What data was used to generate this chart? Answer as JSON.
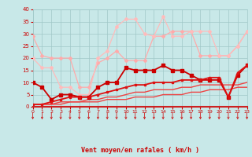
{
  "xlabel": "Vent moyen/en rafales ( km/h )",
  "bg_color": "#c8e8e8",
  "grid_color": "#a0c8c8",
  "xlim": [
    0,
    23
  ],
  "ylim": [
    0,
    40
  ],
  "xtick_vals": [
    0,
    1,
    2,
    3,
    4,
    5,
    6,
    7,
    8,
    9,
    10,
    11,
    12,
    13,
    14,
    15,
    16,
    17,
    18,
    19,
    20,
    21,
    22,
    23
  ],
  "ytick_vals": [
    0,
    5,
    10,
    15,
    20,
    25,
    30,
    35,
    40
  ],
  "lines": [
    {
      "x": [
        0,
        1,
        2,
        3,
        4,
        5,
        6,
        7,
        8,
        9,
        10,
        11,
        12,
        13,
        14,
        15,
        16,
        17,
        18,
        19,
        20,
        21,
        22,
        23
      ],
      "y": [
        29,
        21,
        20,
        20,
        20,
        8,
        8,
        18,
        20,
        23,
        19,
        19,
        19,
        29,
        29,
        31,
        31,
        31,
        21,
        21,
        21,
        21,
        25,
        31
      ],
      "color": "#ffaaaa",
      "lw": 0.9,
      "marker": "D",
      "ms": 2.0,
      "zorder": 3
    },
    {
      "x": [
        0,
        1,
        2,
        3,
        4,
        5,
        6,
        7,
        8,
        9,
        10,
        11,
        12,
        13,
        14,
        15,
        16,
        17,
        18,
        19,
        20,
        21,
        22,
        23
      ],
      "y": [
        20,
        16,
        16,
        8,
        8,
        5,
        5,
        20,
        23,
        33,
        36,
        36,
        30,
        29,
        37,
        29,
        29,
        31,
        31,
        31,
        21,
        21,
        25,
        31
      ],
      "color": "#ffbbbb",
      "lw": 0.9,
      "marker": "D",
      "ms": 2.0,
      "zorder": 3
    },
    {
      "x": [
        0,
        1,
        2,
        3,
        4,
        5,
        6,
        7,
        8,
        9,
        10,
        11,
        12,
        13,
        14,
        15,
        16,
        17,
        18,
        19,
        20,
        21,
        22,
        23
      ],
      "y": [
        10,
        8,
        3,
        5,
        5,
        4,
        4,
        8,
        10,
        10,
        16,
        15,
        15,
        15,
        17,
        15,
        15,
        13,
        11,
        11,
        11,
        4,
        13,
        17
      ],
      "color": "#cc0000",
      "lw": 1.3,
      "marker": "s",
      "ms": 2.2,
      "zorder": 4
    },
    {
      "x": [
        0,
        1,
        2,
        3,
        4,
        5,
        6,
        7,
        8,
        9,
        10,
        11,
        12,
        13,
        14,
        15,
        16,
        17,
        18,
        19,
        20,
        21,
        22,
        23
      ],
      "y": [
        1,
        1,
        2,
        3,
        4,
        4,
        4,
        5,
        6,
        7,
        8,
        9,
        9,
        10,
        10,
        10,
        11,
        11,
        11,
        12,
        12,
        4,
        14,
        17
      ],
      "color": "#dd1111",
      "lw": 1.3,
      "marker": "s",
      "ms": 1.8,
      "zorder": 4
    },
    {
      "x": [
        0,
        1,
        2,
        3,
        4,
        5,
        6,
        7,
        8,
        9,
        10,
        11,
        12,
        13,
        14,
        15,
        16,
        17,
        18,
        19,
        20,
        21,
        22,
        23
      ],
      "y": [
        1,
        1,
        1,
        2,
        2,
        2,
        3,
        3,
        4,
        4,
        5,
        6,
        6,
        7,
        7,
        7,
        8,
        8,
        9,
        9,
        9,
        9,
        9,
        10
      ],
      "color": "#ee4444",
      "lw": 1.0,
      "marker": null,
      "ms": 0,
      "zorder": 2
    },
    {
      "x": [
        0,
        1,
        2,
        3,
        4,
        5,
        6,
        7,
        8,
        9,
        10,
        11,
        12,
        13,
        14,
        15,
        16,
        17,
        18,
        19,
        20,
        21,
        22,
        23
      ],
      "y": [
        1,
        1,
        1,
        1,
        2,
        2,
        2,
        2,
        3,
        3,
        3,
        4,
        4,
        4,
        5,
        5,
        5,
        6,
        6,
        7,
        7,
        7,
        8,
        8
      ],
      "color": "#ee4444",
      "lw": 1.0,
      "marker": null,
      "ms": 0,
      "zorder": 2
    }
  ],
  "tick_color": "#cc0000",
  "label_color": "#cc0000",
  "red_line_color": "#cc2222",
  "arrow_color": "#cc2222"
}
